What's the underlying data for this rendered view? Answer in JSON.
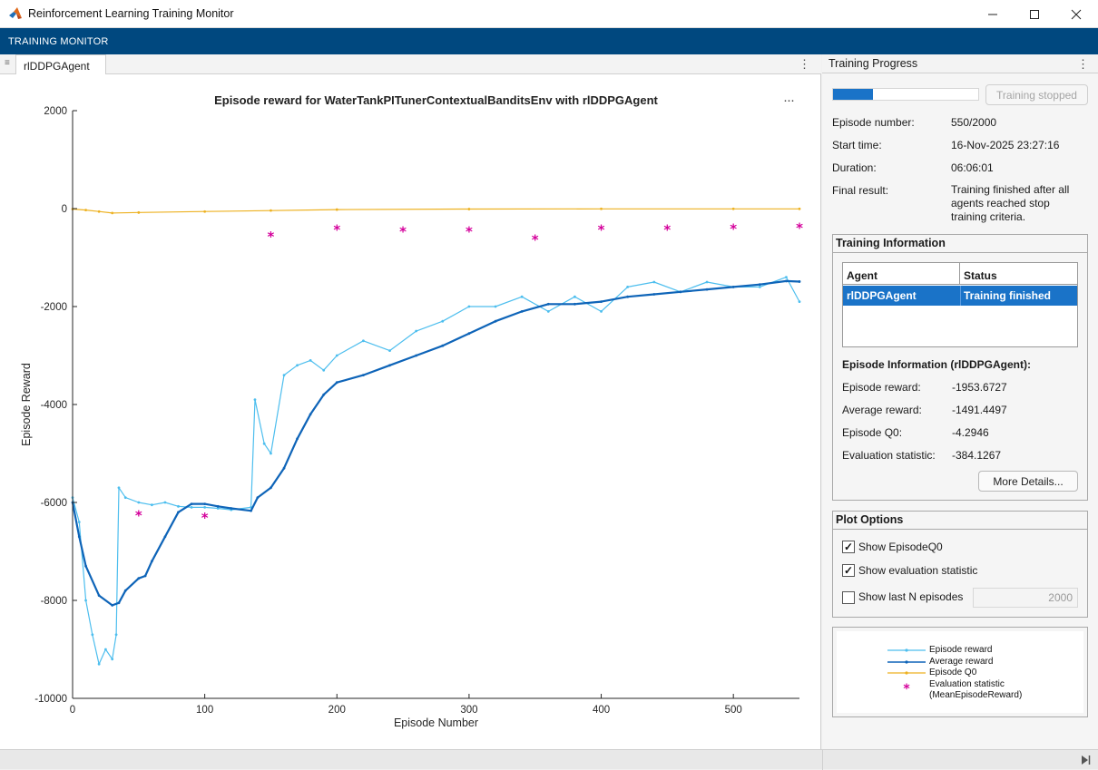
{
  "window": {
    "title": "Reinforcement Learning Training Monitor"
  },
  "ribbon": {
    "label": "TRAINING MONITOR"
  },
  "document_tab": {
    "label": "rlDDPGAgent"
  },
  "plot": {
    "title": "Episode reward for WaterTankPITunerContextualBanditsEnv with rlDDPGAgent"
  },
  "chart_data": {
    "type": "line",
    "xlabel": "Episode Number",
    "ylabel": "Episode Reward",
    "xlim": [
      0,
      550
    ],
    "ylim": [
      -10000,
      2000
    ],
    "xticks": [
      0,
      100,
      200,
      300,
      400,
      500
    ],
    "yticks": [
      2000,
      0,
      -2000,
      -4000,
      -6000,
      -8000,
      -10000
    ],
    "grid": false,
    "legend_position": "separate panel",
    "series": [
      {
        "name": "Episode reward",
        "color": "#4dbeee",
        "marker": "dot",
        "x": [
          0,
          5,
          10,
          15,
          20,
          25,
          30,
          33,
          35,
          40,
          50,
          60,
          70,
          80,
          90,
          100,
          110,
          120,
          135,
          138,
          145,
          150,
          160,
          170,
          180,
          190,
          200,
          220,
          240,
          260,
          280,
          300,
          320,
          340,
          360,
          380,
          400,
          420,
          440,
          460,
          480,
          500,
          520,
          540,
          550
        ],
        "y": [
          -5900,
          -6400,
          -8000,
          -8700,
          -9300,
          -9000,
          -9200,
          -8700,
          -5700,
          -5900,
          -6000,
          -6050,
          -6000,
          -6080,
          -6100,
          -6100,
          -6120,
          -6150,
          -6100,
          -3900,
          -4800,
          -5000,
          -3400,
          -3200,
          -3100,
          -3300,
          -3000,
          -2700,
          -2900,
          -2500,
          -2300,
          -2000,
          -2000,
          -1800,
          -2100,
          -1800,
          -2100,
          -1600,
          -1500,
          -1700,
          -1500,
          -1600,
          -1600,
          -1400,
          -1900
        ]
      },
      {
        "name": "Average reward",
        "color": "#0e64b8",
        "marker": "dot",
        "x": [
          0,
          5,
          10,
          20,
          30,
          35,
          40,
          50,
          55,
          60,
          70,
          80,
          90,
          100,
          110,
          120,
          135,
          140,
          150,
          160,
          170,
          180,
          190,
          200,
          220,
          240,
          260,
          280,
          300,
          320,
          340,
          360,
          380,
          400,
          420,
          440,
          460,
          480,
          500,
          520,
          540,
          550
        ],
        "y": [
          -6000,
          -6700,
          -7300,
          -7900,
          -8100,
          -8050,
          -7800,
          -7550,
          -7500,
          -7200,
          -6700,
          -6200,
          -6030,
          -6030,
          -6080,
          -6120,
          -6170,
          -5900,
          -5700,
          -5300,
          -4700,
          -4200,
          -3800,
          -3550,
          -3400,
          -3200,
          -3000,
          -2800,
          -2550,
          -2300,
          -2100,
          -1950,
          -1950,
          -1900,
          -1800,
          -1750,
          -1700,
          -1650,
          -1600,
          -1550,
          -1480,
          -1490
        ]
      },
      {
        "name": "Episode Q0",
        "color": "#edb120",
        "marker": "dot",
        "x": [
          0,
          10,
          20,
          30,
          50,
          100,
          150,
          200,
          300,
          400,
          500,
          550
        ],
        "y": [
          -10,
          -30,
          -60,
          -90,
          -80,
          -60,
          -40,
          -20,
          -10,
          -5,
          -5,
          -5
        ]
      },
      {
        "name": "Evaluation statistic (MeanEpisodeReward)",
        "color": "#d4009b",
        "marker": "asterisk",
        "x": [
          50,
          100,
          150,
          200,
          250,
          300,
          350,
          400,
          450,
          500,
          550
        ],
        "y": [
          -6250,
          -6300,
          -560,
          -420,
          -450,
          -450,
          -620,
          -420,
          -420,
          -400,
          -380
        ]
      }
    ]
  },
  "training_progress": {
    "header": "Training Progress",
    "progress_fraction": 0.275,
    "stop_button": "Training stopped",
    "fields": [
      {
        "label": "Episode number:",
        "value": "550/2000"
      },
      {
        "label": "Start time:",
        "value": "16-Nov-2025 23:27:16"
      },
      {
        "label": "Duration:",
        "value": "06:06:01"
      },
      {
        "label": "Final result:",
        "value": "Training finished after all agents reached stop training criteria."
      }
    ]
  },
  "training_information": {
    "title": "Training Information",
    "table_headers": [
      "Agent",
      "Status"
    ],
    "rows": [
      {
        "agent": "rlDDPGAgent",
        "status": "Training finished"
      }
    ],
    "episode_info_title": "Episode Information (rlDDPGAgent):",
    "episode_info": [
      {
        "label": "Episode reward:",
        "value": "-1953.6727"
      },
      {
        "label": "Average reward:",
        "value": "-1491.4497"
      },
      {
        "label": "Episode Q0:",
        "value": "-4.2946"
      },
      {
        "label": "Evaluation statistic:",
        "value": "-384.1267"
      }
    ],
    "more_details_button": "More Details..."
  },
  "plot_options": {
    "title": "Plot Options",
    "show_q0": {
      "label": "Show EpisodeQ0",
      "checked": true
    },
    "show_eval": {
      "label": "Show evaluation statistic",
      "checked": true
    },
    "show_last_n": {
      "label": "Show last N episodes",
      "checked": false
    },
    "last_n_value": "2000"
  },
  "legend": {
    "entries": [
      "Episode reward",
      "Average reward",
      "Episode Q0",
      "Evaluation statistic",
      "(MeanEpisodeReward)"
    ]
  }
}
